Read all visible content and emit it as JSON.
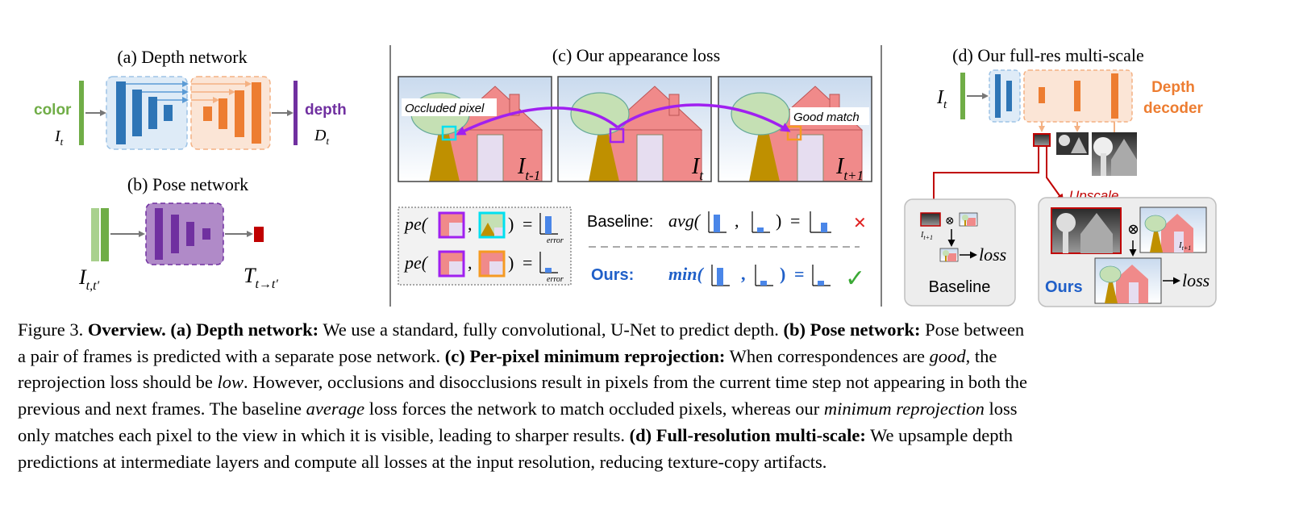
{
  "panels": {
    "a": {
      "title": "(a) Depth network",
      "input_label": "color",
      "input_var": "I",
      "input_sub": "t",
      "output_label": "depth",
      "output_var": "D",
      "output_sub": "t"
    },
    "b": {
      "title": "(b) Pose network",
      "input_var": "I",
      "input_sub": "t,t′",
      "output_var": "T",
      "output_sub": "t→t′"
    },
    "c": {
      "title": "(c) Our appearance loss",
      "frames": [
        {
          "var": "I",
          "sub": "t-1"
        },
        {
          "var": "I",
          "sub": "t"
        },
        {
          "var": "I",
          "sub": "t+1"
        }
      ],
      "occluded_label": "Occluded pixel",
      "good_match_label": "Good match",
      "pe_label": "pe(",
      "close_paren": ")",
      "comma": ",",
      "equals": "=",
      "error_label": "error",
      "baseline_label": "Baseline:",
      "baseline_fn": "avg(",
      "ours_label": "Ours:",
      "ours_fn": "min(",
      "cross": "✕",
      "check": "✓"
    },
    "d": {
      "title": "(d) Our full-res multi-scale",
      "input_var": "I",
      "input_sub": "t",
      "decoder_label_1": "Depth",
      "decoder_label_2": "decoder",
      "upscale_label": "Upscale",
      "small_var": "I",
      "small_sub": "t+1",
      "otimes": "⊗",
      "loss_label": "loss",
      "baseline_label": "Baseline",
      "ours_label": "Ours"
    }
  },
  "caption": {
    "fig_num": "Figure 3.",
    "overview": "Overview.",
    "a_head": "(a) Depth network:",
    "a_text": "We use a standard, fully convolutional, U-Net to predict depth.",
    "b_head": "(b) Pose network:",
    "b_text_1": "Pose between",
    "b_text_2": "a pair of frames is predicted with a separate pose network.",
    "c_head": "(c) Per-pixel minimum reprojection:",
    "c_text_1": "When correspondences are",
    "c_good": "good",
    "c_text_2": ", the",
    "c_text_3": "reprojection loss should be",
    "c_low": "low",
    "c_text_4": ". However, occlusions and disocclusions result in pixels from the current time step not appearing in both the",
    "c_text_5": "previous and next frames. The baseline",
    "c_average": "average",
    "c_text_6": "loss forces the network to match occluded pixels, whereas our",
    "c_minrep": "minimum reprojection",
    "c_text_7": "loss",
    "c_text_8": "only matches each pixel to the view in which it is visible, leading to sharper results.",
    "d_head": "(d) Full-resolution multi-scale:",
    "d_text_1": "We upsample depth",
    "d_text_2": "predictions at intermediate layers and compute all losses at the input resolution, reducing texture-copy artifacts."
  },
  "colors": {
    "green": "#70AD47",
    "blue": "#2E75B6",
    "blue_bg": "#DEEBF7",
    "orange": "#ED7D31",
    "orange_bg": "#FBE5D6",
    "purple": "#7030A0",
    "purple_bg": "#B08AC8",
    "red": "#C00000",
    "arrow_violet": "#A020F0",
    "ours_blue": "#1F5FC8",
    "check_green": "#3AA935"
  }
}
